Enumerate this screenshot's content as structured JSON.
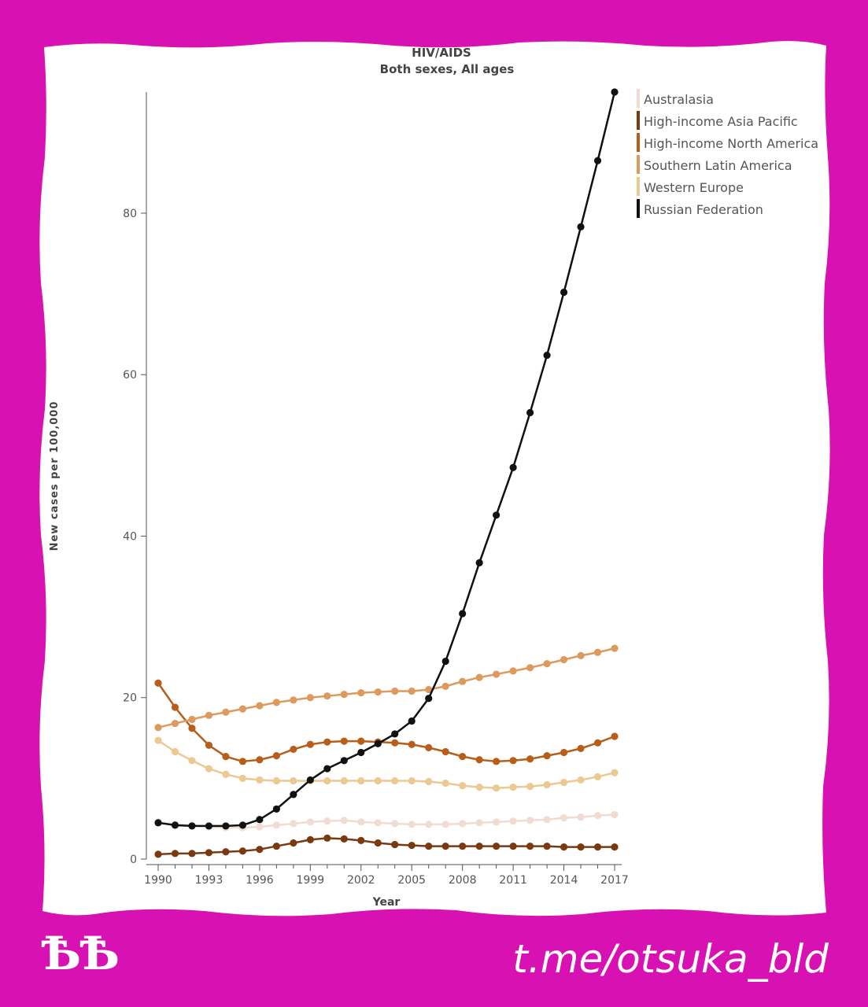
{
  "branding": {
    "logo_text": "ѢѢ",
    "handle": "t.me/otsuka_bld"
  },
  "colors": {
    "background": "#d811b3",
    "panel": "#ffffff"
  },
  "chart_data": {
    "type": "line",
    "title": "HIV/AIDS",
    "subtitle": "Both sexes, All ages",
    "xlabel": "Year",
    "ylabel": "New cases per 100,000",
    "xlim": [
      1990,
      2017
    ],
    "ylim": [
      0,
      95
    ],
    "x_ticks": [
      "1990",
      "1993",
      "1996",
      "1999",
      "2002",
      "2005",
      "2008",
      "2011",
      "2014",
      "2017"
    ],
    "y_ticks": [
      "0",
      "20",
      "40",
      "60",
      "80"
    ],
    "legend_position": "top-right",
    "x": [
      1990,
      1991,
      1992,
      1993,
      1994,
      1995,
      1996,
      1997,
      1998,
      1999,
      2000,
      2001,
      2002,
      2003,
      2004,
      2005,
      2006,
      2007,
      2008,
      2009,
      2010,
      2011,
      2012,
      2013,
      2014,
      2015,
      2016,
      2017
    ],
    "series": [
      {
        "name": "Australasia",
        "color": "#f1dcd1",
        "values": [
          4.6,
          4.3,
          4.2,
          4.0,
          3.9,
          3.9,
          4.0,
          4.2,
          4.4,
          4.6,
          4.7,
          4.8,
          4.6,
          4.5,
          4.4,
          4.3,
          4.3,
          4.3,
          4.4,
          4.5,
          4.6,
          4.7,
          4.8,
          4.9,
          5.1,
          5.2,
          5.4,
          5.5
        ]
      },
      {
        "name": "High-income Asia Pacific",
        "color": "#7a3a10",
        "values": [
          0.6,
          0.7,
          0.7,
          0.8,
          0.9,
          1.0,
          1.2,
          1.6,
          2.0,
          2.4,
          2.6,
          2.5,
          2.3,
          2.0,
          1.8,
          1.7,
          1.6,
          1.6,
          1.6,
          1.6,
          1.6,
          1.6,
          1.6,
          1.6,
          1.5,
          1.5,
          1.5,
          1.5
        ]
      },
      {
        "name": "High-income North America",
        "color": "#b85d1a",
        "values": [
          21.8,
          18.8,
          16.2,
          14.1,
          12.7,
          12.1,
          12.3,
          12.8,
          13.6,
          14.2,
          14.5,
          14.6,
          14.6,
          14.5,
          14.4,
          14.2,
          13.8,
          13.3,
          12.7,
          12.3,
          12.1,
          12.2,
          12.4,
          12.8,
          13.2,
          13.7,
          14.4,
          15.2
        ]
      },
      {
        "name": "Southern Latin America",
        "color": "#dc9a5c",
        "values": [
          16.3,
          16.8,
          17.3,
          17.8,
          18.2,
          18.6,
          19.0,
          19.4,
          19.7,
          20.0,
          20.2,
          20.4,
          20.6,
          20.7,
          20.8,
          20.8,
          21.0,
          21.4,
          22.0,
          22.5,
          22.9,
          23.3,
          23.7,
          24.2,
          24.7,
          25.2,
          25.6,
          26.1
        ]
      },
      {
        "name": "Western Europe",
        "color": "#ecc892",
        "values": [
          14.7,
          13.3,
          12.2,
          11.2,
          10.5,
          10.0,
          9.8,
          9.7,
          9.7,
          9.7,
          9.7,
          9.7,
          9.7,
          9.7,
          9.7,
          9.7,
          9.6,
          9.4,
          9.1,
          8.9,
          8.8,
          8.9,
          9.0,
          9.2,
          9.5,
          9.8,
          10.2,
          10.7
        ]
      },
      {
        "name": "Russian Federation",
        "color": "#111111",
        "values": [
          4.5,
          4.2,
          4.1,
          4.1,
          4.1,
          4.2,
          4.9,
          6.2,
          8.0,
          9.8,
          11.2,
          12.2,
          13.2,
          14.3,
          15.5,
          17.1,
          19.9,
          24.5,
          30.4,
          36.7,
          42.6,
          48.5,
          55.3,
          62.4,
          70.2,
          78.3,
          86.5,
          95.0
        ]
      }
    ]
  }
}
